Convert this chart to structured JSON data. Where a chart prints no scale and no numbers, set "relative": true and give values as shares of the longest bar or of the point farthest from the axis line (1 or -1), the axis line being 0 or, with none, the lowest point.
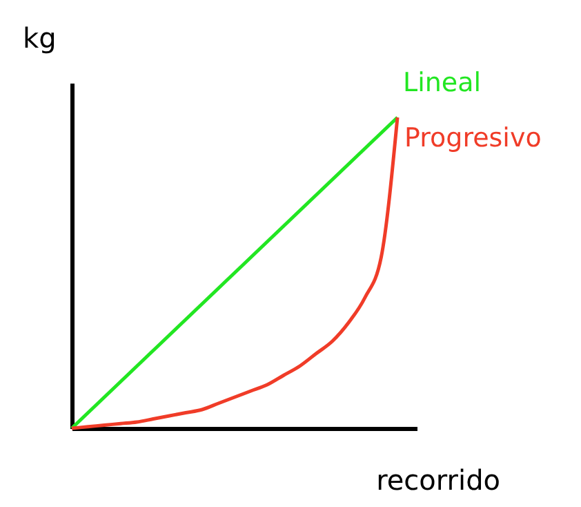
{
  "chart_data": {
    "type": "line",
    "relative": true,
    "xlabel": "recorrido",
    "ylabel": "kg",
    "categories": [
      null,
      null,
      null,
      null,
      null,
      null,
      null,
      null,
      null,
      null,
      null,
      null,
      null,
      null,
      null,
      null,
      null,
      null,
      null,
      null,
      null
    ],
    "series": [
      {
        "name": "Lineal",
        "color": "#22e622",
        "values": [
          0,
          0.05,
          0.1,
          0.15,
          0.2,
          0.25,
          0.3,
          0.35,
          0.4,
          0.45,
          0.5,
          0.55,
          0.6,
          0.65,
          0.7,
          0.75,
          0.8,
          0.85,
          0.9,
          0.95,
          1
        ]
      },
      {
        "name": "Progresivo",
        "color": "#f03c28",
        "values": [
          0,
          0.005,
          0.01,
          0.015,
          0.02,
          0.03,
          0.04,
          0.05,
          0.06,
          0.08,
          0.1,
          0.12,
          0.14,
          0.17,
          0.2,
          0.24,
          0.28,
          0.34,
          0.42,
          0.55,
          1
        ]
      }
    ]
  }
}
